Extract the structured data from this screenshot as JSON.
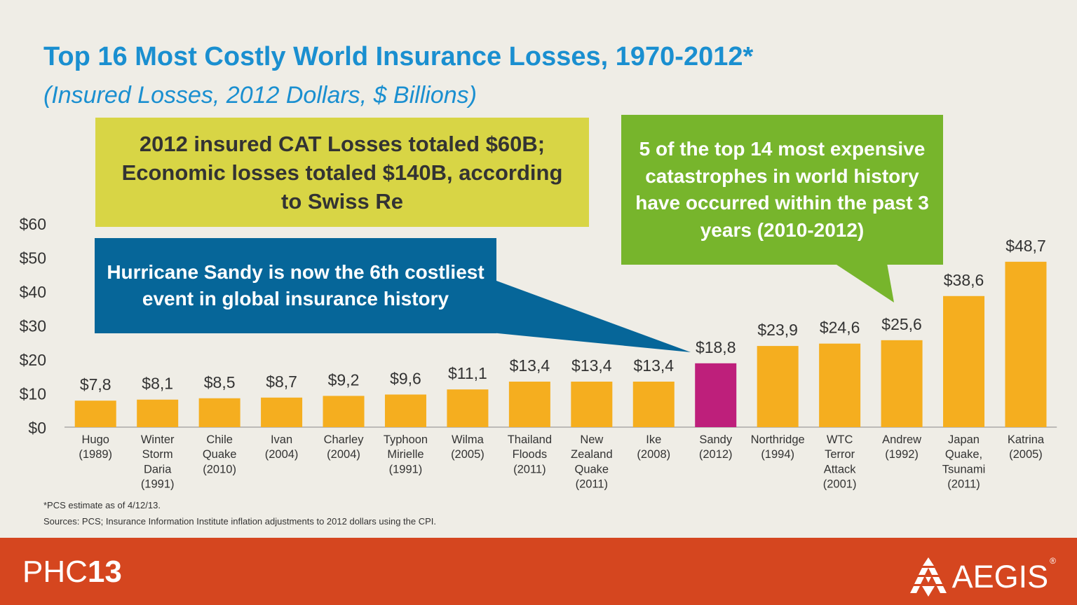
{
  "title": "Top 16 Most Costly World Insurance Losses, 1970-2012*",
  "subtitle": "(Insured Losses, 2012 Dollars, $ Billions)",
  "callouts": {
    "yellow": "2012 insured CAT Losses totaled $60B; Economic losses totaled $140B, according to Swiss Re",
    "blue": "Hurricane Sandy is now the 6th costliest event in global insurance history",
    "green": "5 of the top 14 most expensive catastrophes in world history have occurred within the past 3 years (2010-2012)"
  },
  "footnotes": {
    "line1": "*PCS  estimate as of 4/12/13.",
    "line2": "Sources: PCS; Insurance Information Institute inflation adjustments to 2012 dollars using the CPI."
  },
  "footer": {
    "logo_left_light": "PHC",
    "logo_left_bold": "13",
    "logo_right": "AEGIS",
    "logo_right_mark": "®"
  },
  "colors": {
    "bar": "#f5ae1f",
    "highlight": "#be1f7b",
    "title": "#1a8fd0",
    "footer": "#d5461f"
  },
  "chart_data": {
    "type": "bar",
    "categories": [
      [
        "Hugo",
        "(1989)"
      ],
      [
        "Winter",
        "Storm",
        "Daria",
        "(1991)"
      ],
      [
        "Chile",
        "Quake",
        "(2010)"
      ],
      [
        "Ivan",
        "(2004)"
      ],
      [
        "Charley",
        "(2004)"
      ],
      [
        "Typhoon",
        "Mirielle",
        "(1991)"
      ],
      [
        "Wilma",
        "(2005)"
      ],
      [
        "Thailand",
        "Floods",
        "(2011)"
      ],
      [
        "New",
        "Zealand",
        "Quake",
        "(2011)"
      ],
      [
        "Ike",
        "(2008)"
      ],
      [
        "Sandy",
        "(2012)"
      ],
      [
        "Northridge",
        "(1994)"
      ],
      [
        "WTC",
        "Terror",
        "Attack",
        "(2001)"
      ],
      [
        "Andrew",
        "(1992)"
      ],
      [
        "Japan",
        "Quake,",
        "Tsunami",
        "(2011)"
      ],
      [
        "Katrina",
        "(2005)"
      ]
    ],
    "values": [
      7.8,
      8.1,
      8.5,
      8.7,
      9.2,
      9.6,
      11.1,
      13.4,
      13.4,
      13.4,
      18.8,
      23.9,
      24.6,
      25.6,
      38.6,
      48.7
    ],
    "value_labels": [
      "$7,8",
      "$8,1",
      "$8,5",
      "$8,7",
      "$9,2",
      "$9,6",
      "$11,1",
      "$13,4",
      "$13,4",
      "$13,4",
      "$18,8",
      "$23,9",
      "$24,6",
      "$25,6",
      "$38,6",
      "$48,7"
    ],
    "highlight_index": 10,
    "y_ticks": [
      0,
      10,
      20,
      30,
      40,
      50,
      60
    ],
    "y_tick_labels": [
      "$0",
      "$10",
      "$20",
      "$30",
      "$40",
      "$50",
      "$60"
    ],
    "ylim": [
      0,
      60
    ],
    "grid": false
  }
}
